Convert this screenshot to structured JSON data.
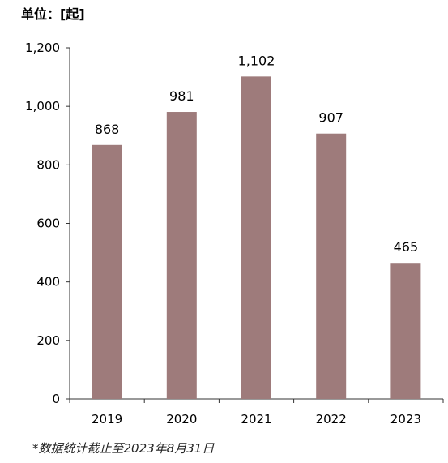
{
  "unit_label": "单位：[起]",
  "footnote": "*数据统计截止至2023年8月31日",
  "chart_data": {
    "type": "bar",
    "title": "",
    "xlabel": "",
    "ylabel": "",
    "categories": [
      "2019",
      "2020",
      "2021",
      "2022",
      "2023"
    ],
    "values": [
      868,
      981,
      1102,
      907,
      465
    ],
    "data_labels": [
      "868",
      "981",
      "1,102",
      "907",
      "465"
    ],
    "ylim": [
      0,
      1200
    ],
    "yticks": [
      0,
      200,
      400,
      600,
      800,
      1000,
      1200
    ],
    "ytick_labels": [
      "0",
      "200",
      "400",
      "600",
      "800",
      "1,000",
      "1,200"
    ],
    "bar_color": "#9e7b7b",
    "grid": false,
    "legend": "none"
  }
}
